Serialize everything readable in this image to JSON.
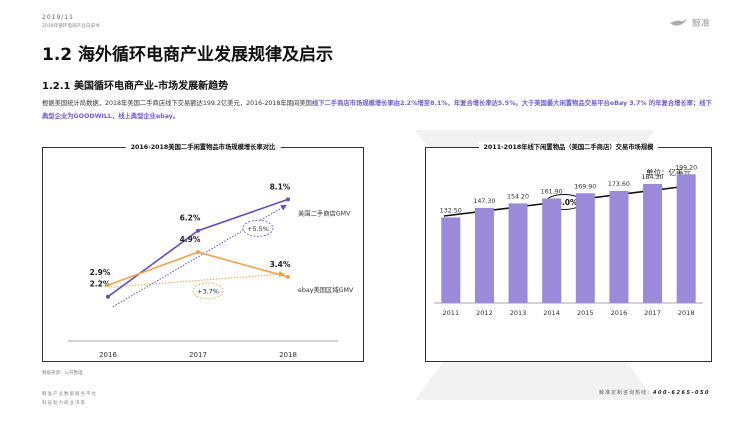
{
  "header": {
    "date": "2019/11",
    "report": "2019年循环电商产业白皮书",
    "logo_text": "鲸准"
  },
  "title": "1.2 海外循环电商产业发展规律及启示",
  "subtitle": "1.2.1 美国循环电商产业-市场发展新趋势",
  "body": {
    "p1": "根据美国统计局数据，2018年美国二手商店线下交易额达199.2亿美元，2016-2018年期间美国",
    "p2": "线下二手商店市场规模增长率由2.2%增至8.1%，年复合增长率达5.5%。大于美国最大闲置物品交易平台eBay 3.7% 的年复合增长率；线下典型企业为GOODWILL，线上典型企业ebay。"
  },
  "chart_data": [
    {
      "type": "line",
      "title": "2016-2018美国二手闲置物品市场规模增长率对比",
      "x": [
        "2016",
        "2017",
        "2018"
      ],
      "series": [
        {
          "name": "美国二手商店GMV",
          "values": [
            2.2,
            6.2,
            8.1
          ],
          "labels": [
            "2.2%",
            "6.2%",
            "8.1%"
          ],
          "color": "#5b4fc9"
        },
        {
          "name": "ebay美国区域GMV",
          "values": [
            2.9,
            4.9,
            3.4
          ],
          "labels": [
            "2.9%",
            "4.9%",
            "3.4%"
          ],
          "color": "#f4a047"
        }
      ],
      "annotations": [
        {
          "text": "+5.5%",
          "series": "美国二手商店GMV"
        },
        {
          "text": "+3.7%",
          "series": "ebay美国区域GMV"
        }
      ],
      "ylim": [
        0,
        10
      ],
      "grid": false
    },
    {
      "type": "bar",
      "title": "2011-2018年线下闲置物品（美国二手商店）交易市场规模",
      "unit_label": "单位：亿美元",
      "categories": [
        "2011",
        "2012",
        "2013",
        "2014",
        "2015",
        "2016",
        "2017",
        "2018"
      ],
      "values": [
        132.5,
        147.3,
        154.2,
        161.9,
        169.9,
        173.6,
        184.3,
        199.2
      ],
      "value_labels": [
        "132.50",
        "147.30",
        "154.20",
        "161.90",
        "169.90",
        "173.60",
        "184.30",
        "199.20"
      ],
      "trend_label": "+6.0%",
      "color": "#9a8ad9",
      "ylim": [
        0,
        240
      ],
      "grid": false
    }
  ],
  "source": "数据来源：公开整理",
  "footer": {
    "line1": "鲸准产业数据服务平台",
    "line2": "科技助力商业决策",
    "hotline_label": "鲸准定制咨询热线：",
    "hotline_number": "400-6265-050"
  }
}
